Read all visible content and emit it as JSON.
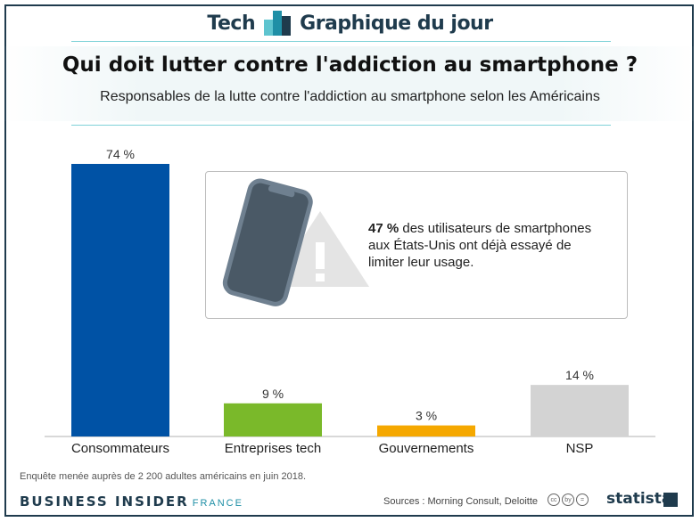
{
  "header": {
    "tech": "Tech",
    "graph_of_day": "Graphique du jour"
  },
  "chart_data": {
    "type": "bar",
    "title": "Qui doit lutter contre l'addiction au smartphone ?",
    "subtitle": "Responsables de la lutte contre l'addiction au smartphone selon les Américains",
    "categories": [
      "Consommateurs",
      "Entreprises tech",
      "Gouvernements",
      "NSP"
    ],
    "values": [
      74,
      9,
      3,
      14
    ],
    "value_labels": [
      "74 %",
      "9 %",
      "3 %",
      "14 %"
    ],
    "colors": [
      "#0052a5",
      "#7ab92a",
      "#f5a800",
      "#d3d3d3"
    ],
    "ylim": [
      0,
      74
    ],
    "xlabel": "",
    "ylabel": "",
    "grid": false
  },
  "callout": {
    "highlight": "47 %",
    "text": " des utilisateurs de smartphones aux États-Unis ont déjà essayé de limiter leur usage."
  },
  "footer": {
    "note": "Enquête menée auprès de 2 200 adultes américains en juin 2018.",
    "brand": "BUSINESS INSIDER",
    "brand_region": "FRANCE",
    "sources": "Sources : Morning Consult, Deloitte",
    "cc_icons": [
      "cc",
      "by",
      "="
    ],
    "statista": "statista"
  }
}
